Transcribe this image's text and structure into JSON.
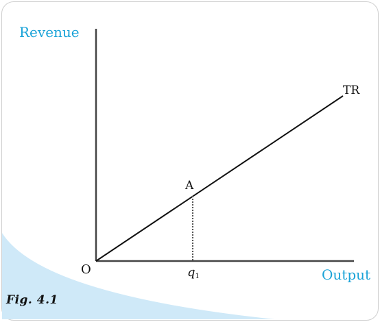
{
  "diagram": {
    "y_axis_label": "Revenue",
    "x_axis_label": "Output",
    "origin_label": "O",
    "curve_label": "TR",
    "point_label": "A",
    "x_tick_label": "q",
    "x_tick_subscript": "1",
    "caption": "Fig. 4.1",
    "colors": {
      "axis_label": "#1aa3d8",
      "lines": "#111111",
      "corner_fill": "#cfe9f8",
      "frame": "#cfcfcf"
    }
  }
}
